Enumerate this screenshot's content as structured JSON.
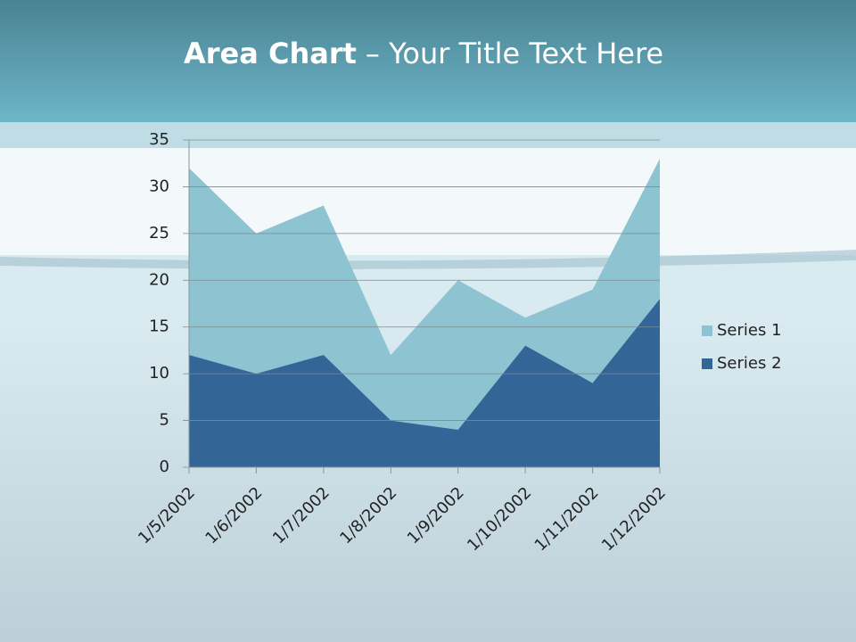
{
  "chart_data": {
    "type": "area",
    "title": [
      "Area Chart",
      "– Your Title Text Here"
    ],
    "categories": [
      "1/5/2002",
      "1/6/2002",
      "1/7/2002",
      "1/8/2002",
      "1/9/2002",
      "1/10/2002",
      "1/11/2002",
      "1/12/2002"
    ],
    "series": [
      {
        "name": "Series 1",
        "color": "#8ec3d2",
        "values": [
          32,
          25,
          28,
          12,
          20,
          16,
          19,
          33
        ]
      },
      {
        "name": "Series 2",
        "color": "#346597",
        "values": [
          12,
          10,
          12,
          5,
          4,
          13,
          9,
          18
        ]
      }
    ],
    "ylim": [
      0,
      35
    ],
    "yticks": [
      0,
      5,
      10,
      15,
      20,
      25,
      30,
      35
    ],
    "grid": true,
    "legend": "right"
  }
}
